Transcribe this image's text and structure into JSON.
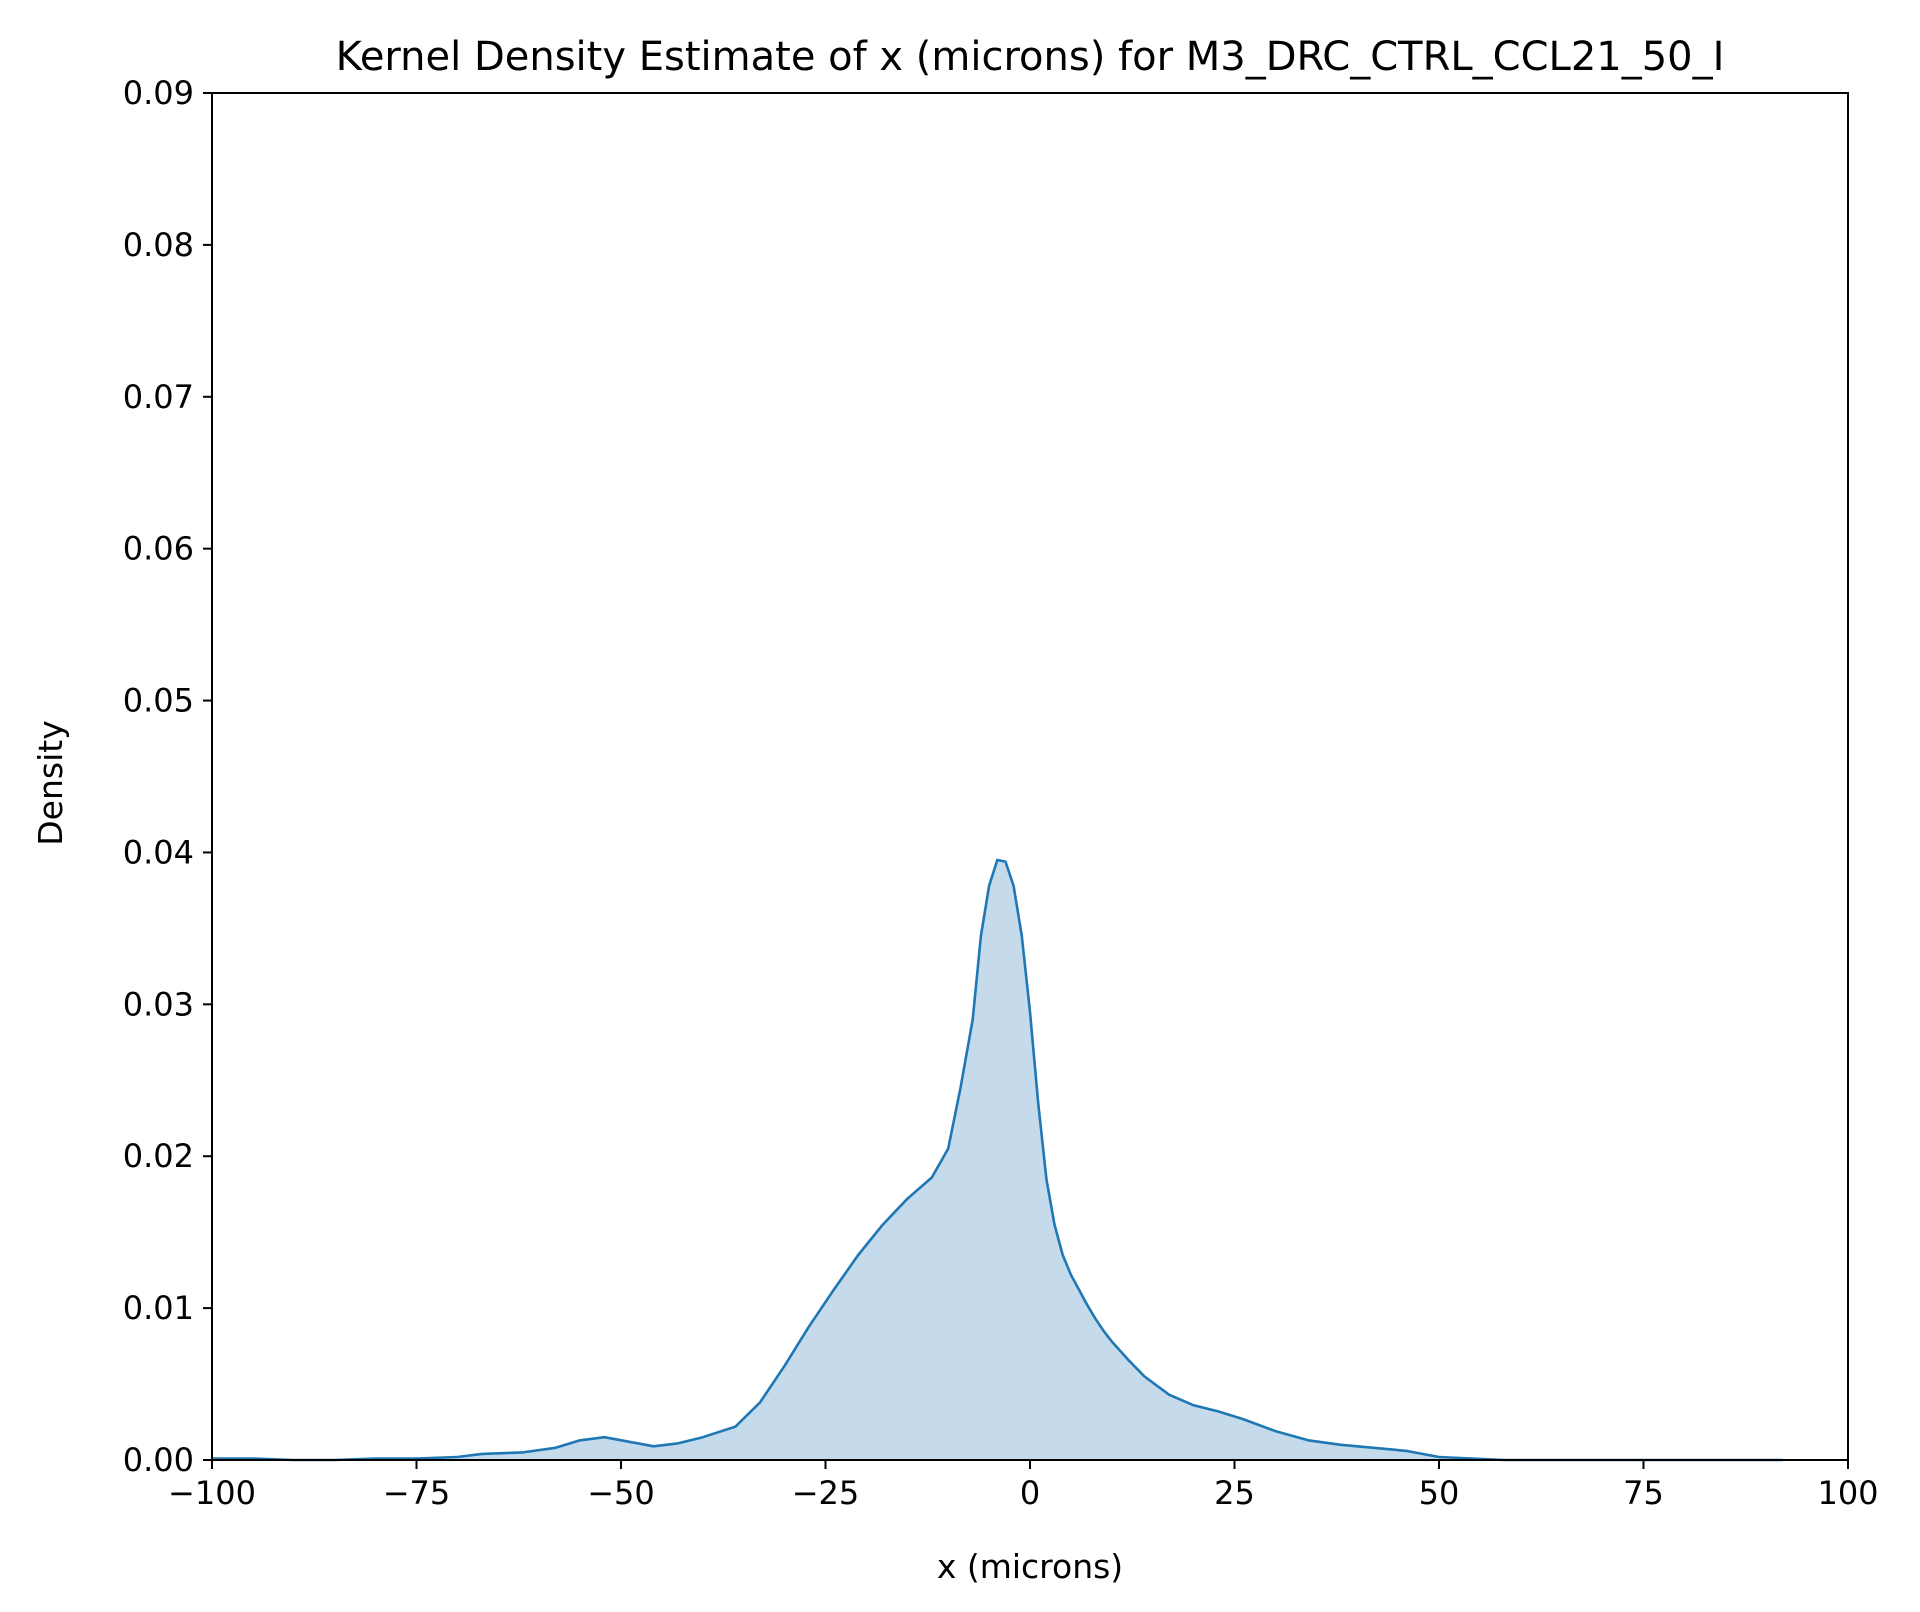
{
  "chart_data": {
    "type": "area",
    "title": "Kernel Density Estimate of x (microns) for M3_DRC_CTRL_CCL21_50_I",
    "xlabel": "x (microns)",
    "ylabel": "Density",
    "xlim": [
      -100,
      100
    ],
    "ylim": [
      0,
      0.09
    ],
    "x_ticks": [
      -100,
      -75,
      -50,
      -25,
      0,
      25,
      50,
      75,
      100
    ],
    "x_tick_labels": [
      "−100",
      "−75",
      "−50",
      "−25",
      "0",
      "25",
      "50",
      "75",
      "100"
    ],
    "y_ticks": [
      0,
      0.01,
      0.02,
      0.03,
      0.04,
      0.05,
      0.06,
      0.07,
      0.08,
      0.09
    ],
    "y_tick_labels": [
      "0.00",
      "0.01",
      "0.02",
      "0.03",
      "0.04",
      "0.05",
      "0.06",
      "0.07",
      "0.08",
      "0.09"
    ],
    "grid": false,
    "legend": "none",
    "line_color": "#1f77b4",
    "fill_color": "#c5dbec",
    "series": [
      {
        "x": [
          -100,
          -95,
          -90,
          -85,
          -80,
          -75,
          -70,
          -67,
          -62,
          -58,
          -55,
          -52,
          -49,
          -46,
          -43,
          -40,
          -36,
          -33,
          -30,
          -27,
          -24,
          -21,
          -18,
          -15,
          -12,
          -10,
          -8.5,
          -7,
          -6,
          -5,
          -4,
          -3,
          -2,
          -1,
          0,
          1,
          2,
          3,
          4,
          5,
          6,
          7,
          8,
          9,
          10,
          12,
          14,
          17,
          20,
          23,
          26,
          30,
          34,
          38,
          42,
          46,
          50,
          54,
          58,
          62,
          70,
          80,
          92
        ],
        "y": [
          0.0001,
          0.0001,
          0.0,
          0.0,
          0.0001,
          0.0001,
          0.0002,
          0.0004,
          0.0005,
          0.0008,
          0.0013,
          0.0015,
          0.0012,
          0.0009,
          0.0011,
          0.0015,
          0.0022,
          0.0038,
          0.0062,
          0.0088,
          0.0112,
          0.0135,
          0.0155,
          0.0172,
          0.0186,
          0.0205,
          0.0245,
          0.029,
          0.0345,
          0.0378,
          0.0395,
          0.0394,
          0.0378,
          0.0345,
          0.0295,
          0.0235,
          0.0185,
          0.0155,
          0.0135,
          0.0122,
          0.0112,
          0.0102,
          0.0093,
          0.0085,
          0.0078,
          0.0066,
          0.0055,
          0.0043,
          0.0036,
          0.0032,
          0.0027,
          0.0019,
          0.0013,
          0.001,
          0.0008,
          0.0006,
          0.0002,
          0.0001,
          0.0,
          0.0,
          0.0,
          0.0,
          0.0
        ]
      }
    ]
  }
}
